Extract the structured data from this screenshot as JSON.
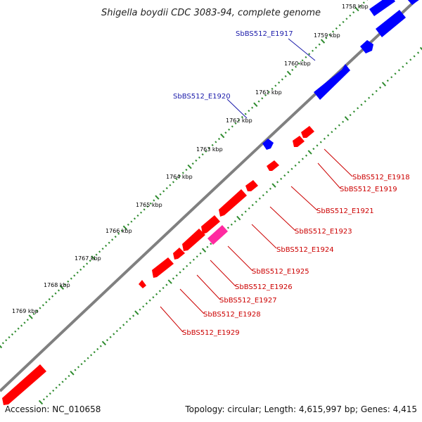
{
  "title": "Shigella boydii CDC 3083-94, complete genome",
  "accession": "Accession: NC_010658",
  "summary": "Topology: circular; Length: 4,615,997 bp; Genes: 4,415",
  "colors": {
    "forward_strand": "#0000ff",
    "reverse_strand": "#ff0000",
    "highlight_gene": "#ff2aa0",
    "backbone": "#808080",
    "ticks": "#2e8b2e",
    "forward_label": "#1a1aaa",
    "reverse_label": "#cc0000"
  },
  "tick_labels": [
    "1758 kbp",
    "1759 kbp",
    "1760 kbp",
    "1761 kbp",
    "1762 kbp",
    "1763 kbp",
    "1764 kbp",
    "1765 kbp",
    "1766 kbp",
    "1767 kbp",
    "1768 kbp",
    "1769 kbp"
  ],
  "forward_gene_labels": [
    "SbBS512_E1917",
    "SbBS512_E1920"
  ],
  "reverse_gene_labels": [
    "SbBS512_E1918",
    "SbBS512_E1919",
    "SbBS512_E1921",
    "SbBS512_E1923",
    "SbBS512_E1924",
    "SbBS512_E1925",
    "SbBS512_E1926",
    "SbBS512_E1927",
    "SbBS512_E1928",
    "SbBS512_E1929"
  ]
}
